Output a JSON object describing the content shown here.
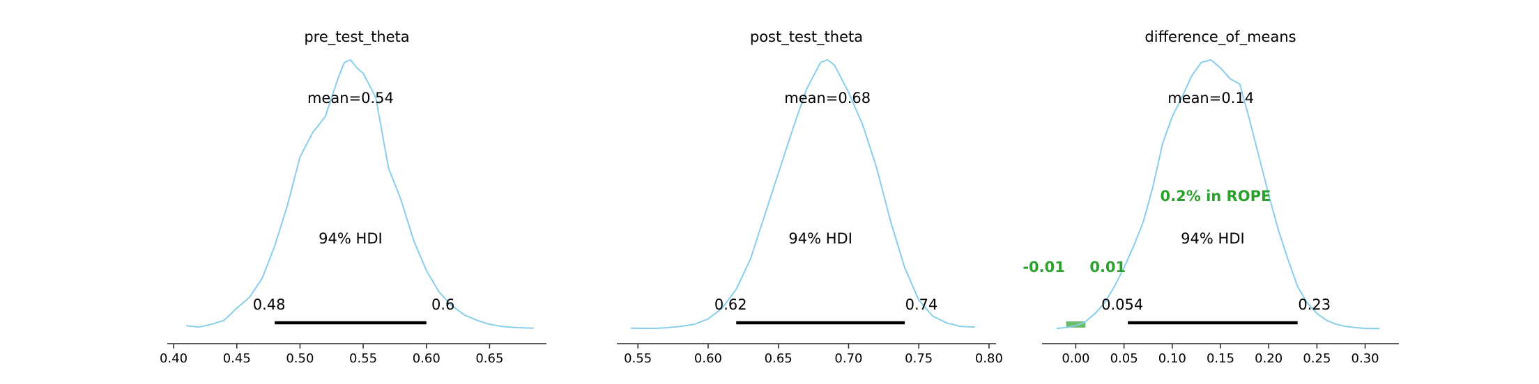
{
  "colors": {
    "kde": "#87CEEB",
    "hdi": "#000000",
    "rope": "#2ca02c",
    "axis": "#262626",
    "text": "#000000"
  },
  "chart_data": [
    {
      "type": "area",
      "title": "pre_test_theta",
      "mean_label": "mean=0.54",
      "hdi_label": "94% HDI",
      "hdi": [
        0.48,
        0.6
      ],
      "hdi_labels": [
        "0.48",
        "0.6"
      ],
      "xlim": [
        0.395,
        0.695
      ],
      "xticks": [
        0.4,
        0.45,
        0.5,
        0.55,
        0.6,
        0.65
      ],
      "xtick_labels": [
        "0.40",
        "0.45",
        "0.50",
        "0.55",
        "0.60",
        "0.65"
      ],
      "density": [
        [
          0.41,
          0.015
        ],
        [
          0.42,
          0.01
        ],
        [
          0.43,
          0.02
        ],
        [
          0.44,
          0.035
        ],
        [
          0.45,
          0.08
        ],
        [
          0.46,
          0.12
        ],
        [
          0.47,
          0.19
        ],
        [
          0.48,
          0.31
        ],
        [
          0.49,
          0.46
        ],
        [
          0.5,
          0.64
        ],
        [
          0.51,
          0.73
        ],
        [
          0.52,
          0.79
        ],
        [
          0.53,
          0.93
        ],
        [
          0.535,
          0.99
        ],
        [
          0.54,
          1.0
        ],
        [
          0.545,
          0.97
        ],
        [
          0.55,
          0.95
        ],
        [
          0.56,
          0.86
        ],
        [
          0.57,
          0.6
        ],
        [
          0.58,
          0.48
        ],
        [
          0.59,
          0.33
        ],
        [
          0.6,
          0.22
        ],
        [
          0.61,
          0.14
        ],
        [
          0.62,
          0.09
        ],
        [
          0.63,
          0.055
        ],
        [
          0.64,
          0.035
        ],
        [
          0.65,
          0.02
        ],
        [
          0.66,
          0.012
        ],
        [
          0.67,
          0.008
        ],
        [
          0.685,
          0.006
        ]
      ]
    },
    {
      "type": "area",
      "title": "post_test_theta",
      "mean_label": "mean=0.68",
      "hdi_label": "94% HDI",
      "hdi": [
        0.62,
        0.74
      ],
      "hdi_labels": [
        "0.62",
        "0.74"
      ],
      "xlim": [
        0.535,
        0.805
      ],
      "xticks": [
        0.55,
        0.6,
        0.65,
        0.7,
        0.75,
        0.8
      ],
      "xtick_labels": [
        "0.55",
        "0.60",
        "0.65",
        "0.70",
        "0.75",
        "0.80"
      ],
      "density": [
        [
          0.545,
          0.006
        ],
        [
          0.56,
          0.005
        ],
        [
          0.57,
          0.007
        ],
        [
          0.58,
          0.012
        ],
        [
          0.59,
          0.02
        ],
        [
          0.6,
          0.04
        ],
        [
          0.61,
          0.08
        ],
        [
          0.62,
          0.15
        ],
        [
          0.63,
          0.26
        ],
        [
          0.64,
          0.42
        ],
        [
          0.65,
          0.58
        ],
        [
          0.66,
          0.74
        ],
        [
          0.67,
          0.89
        ],
        [
          0.68,
          0.99
        ],
        [
          0.685,
          1.0
        ],
        [
          0.69,
          0.98
        ],
        [
          0.7,
          0.88
        ],
        [
          0.71,
          0.76
        ],
        [
          0.72,
          0.6
        ],
        [
          0.73,
          0.4
        ],
        [
          0.74,
          0.23
        ],
        [
          0.75,
          0.11
        ],
        [
          0.76,
          0.05
        ],
        [
          0.77,
          0.025
        ],
        [
          0.78,
          0.012
        ],
        [
          0.79,
          0.01
        ]
      ]
    },
    {
      "type": "area",
      "title": "difference_of_means",
      "mean_label": "mean=0.14",
      "hdi_label": "94% HDI",
      "hdi": [
        0.054,
        0.23
      ],
      "hdi_labels": [
        "0.054",
        "0.23"
      ],
      "rope": [
        -0.01,
        0.01
      ],
      "rope_labels": [
        "-0.01",
        "0.01"
      ],
      "rope_label": "0.2% in ROPE",
      "xlim": [
        -0.035,
        0.335
      ],
      "xticks": [
        0.0,
        0.05,
        0.1,
        0.15,
        0.2,
        0.25,
        0.3
      ],
      "xtick_labels": [
        "0.00",
        "0.05",
        "0.10",
        "0.15",
        "0.20",
        "0.25",
        "0.30"
      ],
      "density": [
        [
          -0.02,
          0.005
        ],
        [
          -0.01,
          0.008
        ],
        [
          0.0,
          0.015
        ],
        [
          0.01,
          0.03
        ],
        [
          0.02,
          0.06
        ],
        [
          0.03,
          0.1
        ],
        [
          0.04,
          0.16
        ],
        [
          0.05,
          0.23
        ],
        [
          0.06,
          0.31
        ],
        [
          0.07,
          0.4
        ],
        [
          0.08,
          0.53
        ],
        [
          0.09,
          0.69
        ],
        [
          0.1,
          0.79
        ],
        [
          0.11,
          0.86
        ],
        [
          0.12,
          0.94
        ],
        [
          0.13,
          0.99
        ],
        [
          0.14,
          1.0
        ],
        [
          0.15,
          0.97
        ],
        [
          0.16,
          0.93
        ],
        [
          0.17,
          0.91
        ],
        [
          0.18,
          0.78
        ],
        [
          0.19,
          0.64
        ],
        [
          0.2,
          0.5
        ],
        [
          0.21,
          0.37
        ],
        [
          0.22,
          0.26
        ],
        [
          0.23,
          0.16
        ],
        [
          0.24,
          0.1
        ],
        [
          0.25,
          0.06
        ],
        [
          0.26,
          0.035
        ],
        [
          0.27,
          0.02
        ],
        [
          0.28,
          0.012
        ],
        [
          0.29,
          0.008
        ],
        [
          0.3,
          0.005
        ],
        [
          0.315,
          0.004
        ]
      ]
    }
  ]
}
